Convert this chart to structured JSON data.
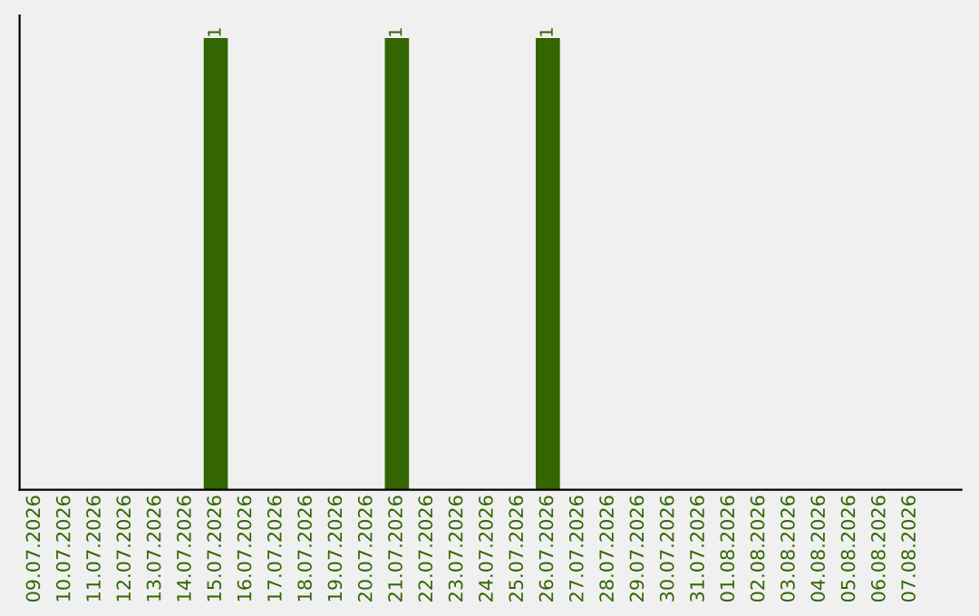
{
  "chart_data": {
    "type": "bar",
    "ylim": [
      0,
      1.05
    ],
    "tick_labels": "x",
    "grid": false,
    "legend": false,
    "categories": [
      "09.07.2026",
      "10.07.2026",
      "11.07.2026",
      "12.07.2026",
      "13.07.2026",
      "14.07.2026",
      "15.07.2026",
      "16.07.2026",
      "17.07.2026",
      "18.07.2026",
      "19.07.2026",
      "20.07.2026",
      "21.07.2026",
      "22.07.2026",
      "23.07.2026",
      "24.07.2026",
      "25.07.2026",
      "26.07.2026",
      "27.07.2026",
      "28.07.2026",
      "29.07.2026",
      "30.07.2026",
      "31.07.2026",
      "01.08.2026",
      "02.08.2026",
      "03.08.2026",
      "04.08.2026",
      "05.08.2026",
      "06.08.2026",
      "07.08.2026"
    ],
    "values": [
      0,
      0,
      0,
      0,
      0,
      0,
      1,
      0,
      0,
      0,
      0,
      0,
      1,
      0,
      0,
      0,
      0,
      1,
      0,
      0,
      0,
      0,
      0,
      0,
      0,
      0,
      0,
      0,
      0,
      0
    ],
    "value_labels": [
      null,
      null,
      null,
      null,
      null,
      null,
      "1",
      null,
      null,
      null,
      null,
      null,
      "1",
      null,
      null,
      null,
      null,
      "1",
      null,
      null,
      null,
      null,
      null,
      null,
      null,
      null,
      null,
      null,
      null,
      null
    ],
    "color": "#336600"
  }
}
